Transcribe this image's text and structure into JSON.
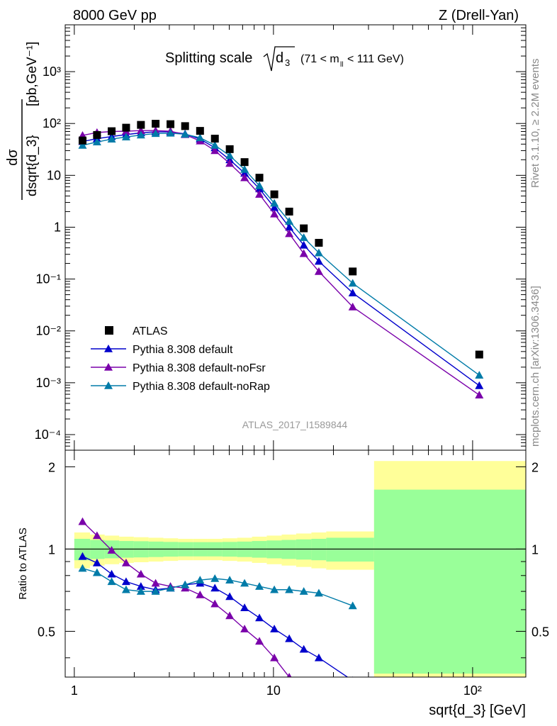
{
  "header": {
    "left": "8000 GeV pp",
    "right": "Z (Drell-Yan)"
  },
  "side": {
    "rivet": "Rivet 3.1.10, ≥ 2.2M events",
    "mcplots": "mcplots.cern.ch [arXiv:1306.3436]"
  },
  "chart_data": [
    {
      "type": "scatter",
      "title": "Splitting scale √d₃ (71 < mₗₗ < 111 GeV)",
      "title_main": "Splitting scale",
      "title_sym": "d",
      "title_sub": "3",
      "title_range_pre": "(71 < m",
      "title_range_sub": "ll",
      "title_range_post": " < 111 GeV)",
      "analysis_label": "ATLAS_2017_I1589844",
      "xlabel": "sqrt{d_3} [GeV]",
      "ylabel_num": "dσ",
      "ylabel_den": "dsqrt{d_3}",
      "ylabel_units": "[pb,GeV⁻¹]",
      "xscale": "log",
      "yscale": "log",
      "xlim": [
        0.9,
        185
      ],
      "ylim": [
        5e-05,
        8000
      ],
      "x_ticks": [
        "1",
        "10",
        "10²"
      ],
      "y_ticks": [
        "10⁻⁴",
        "10⁻³",
        "10⁻²",
        "10⁻¹",
        "1",
        "10",
        "10²",
        "10³"
      ],
      "legend_position": "bottom-left",
      "series": [
        {
          "name": "ATLAS",
          "color": "#000000",
          "marker": "square",
          "x": [
            1.1,
            1.3,
            1.54,
            1.82,
            2.16,
            2.56,
            3.04,
            3.6,
            4.28,
            5.08,
            6.03,
            7.16,
            8.5,
            10.1,
            12.0,
            14.2,
            16.9,
            25.0,
            108.0
          ],
          "y": [
            47,
            60,
            71,
            83,
            94,
            99,
            97,
            89,
            72,
            51,
            32,
            18,
            9.0,
            4.3,
            2.0,
            0.95,
            0.5,
            0.14,
            0.0035
          ]
        },
        {
          "name": "Pythia 8.308 default",
          "color": "#0000cc",
          "marker": "triangle",
          "x": [
            1.1,
            1.3,
            1.54,
            1.82,
            2.16,
            2.56,
            3.04,
            3.6,
            4.28,
            5.08,
            6.03,
            7.16,
            8.5,
            10.1,
            12.0,
            14.2,
            16.9,
            25.0,
            108.0
          ],
          "y": [
            45,
            51,
            56,
            61,
            66,
            69,
            69,
            63,
            50,
            34,
            20,
            11,
            5.5,
            2.4,
            1.0,
            0.45,
            0.22,
            0.054,
            0.00088
          ]
        },
        {
          "name": "Pythia 8.308 default-noFsr",
          "color": "#7a00aa",
          "marker": "triangle",
          "x": [
            1.1,
            1.3,
            1.54,
            1.82,
            2.16,
            2.56,
            3.04,
            3.6,
            4.28,
            5.08,
            6.03,
            7.16,
            8.5,
            10.1,
            12.0,
            14.2,
            16.9,
            25.0,
            108.0
          ],
          "y": [
            59,
            67,
            70,
            71,
            73,
            73,
            71,
            61,
            46,
            30,
            17,
            9.0,
            4.3,
            1.8,
            0.75,
            0.31,
            0.14,
            0.029,
            0.00058
          ]
        },
        {
          "name": "Pythia 8.308 default-noRap",
          "color": "#007ba8",
          "marker": "triangle",
          "x": [
            1.1,
            1.3,
            1.54,
            1.82,
            2.16,
            2.56,
            3.04,
            3.6,
            4.28,
            5.08,
            6.03,
            7.16,
            8.5,
            10.1,
            12.0,
            14.2,
            16.9,
            25.0,
            108.0
          ],
          "y": [
            38,
            44,
            50,
            55,
            60,
            64,
            65,
            62,
            53,
            38,
            24,
            13,
            6.3,
            2.9,
            1.3,
            0.63,
            0.32,
            0.083,
            0.0014
          ]
        }
      ]
    },
    {
      "type": "line",
      "ylabel": "Ratio to ATLAS",
      "xscale": "log",
      "xlim": [
        0.9,
        185
      ],
      "ylim": [
        0.34,
        2.3
      ],
      "y_ticks": [
        "0.5",
        "1",
        "2"
      ],
      "bands": {
        "edges": [
          1.0,
          1.2,
          1.42,
          1.68,
          1.99,
          2.36,
          2.8,
          3.32,
          3.94,
          4.67,
          5.54,
          6.57,
          7.8,
          9.25,
          11.0,
          13.0,
          15.5,
          18.4,
          32.0,
          185.0
        ],
        "inner": [
          0.09,
          0.08,
          0.075,
          0.07,
          0.068,
          0.065,
          0.062,
          0.06,
          0.06,
          0.06,
          0.062,
          0.065,
          0.07,
          0.075,
          0.08,
          0.085,
          0.09,
          0.1,
          0.65
        ],
        "outer": [
          0.15,
          0.13,
          0.12,
          0.11,
          0.105,
          0.1,
          0.095,
          0.09,
          0.09,
          0.09,
          0.095,
          0.1,
          0.11,
          0.12,
          0.13,
          0.14,
          0.15,
          0.16,
          1.1
        ],
        "inner_color": "#99ff99",
        "outer_color": "#ffff99"
      },
      "series": [
        {
          "name": "Pythia 8.308 default",
          "color": "#0000cc",
          "x": [
            1.1,
            1.3,
            1.54,
            1.82,
            2.16,
            2.56,
            3.04,
            3.6,
            4.28,
            5.08,
            6.03,
            7.16,
            8.5,
            10.1,
            12.0,
            14.2,
            16.9,
            25.0
          ],
          "y": [
            0.94,
            0.89,
            0.81,
            0.76,
            0.73,
            0.71,
            0.72,
            0.74,
            0.75,
            0.72,
            0.67,
            0.61,
            0.56,
            0.51,
            0.47,
            0.43,
            0.4,
            0.33
          ]
        },
        {
          "name": "Pythia 8.308 default-noFsr",
          "color": "#7a00aa",
          "x": [
            1.1,
            1.3,
            1.54,
            1.82,
            2.16,
            2.56,
            3.04,
            3.6,
            4.28,
            5.08,
            6.03,
            7.16,
            8.5,
            10.1,
            12.0
          ],
          "y": [
            1.26,
            1.12,
            0.99,
            0.89,
            0.81,
            0.75,
            0.73,
            0.72,
            0.68,
            0.63,
            0.57,
            0.51,
            0.46,
            0.4,
            0.34
          ]
        },
        {
          "name": "Pythia 8.308 default-noRap",
          "color": "#007ba8",
          "x": [
            1.1,
            1.3,
            1.54,
            1.82,
            2.16,
            2.56,
            3.04,
            3.6,
            4.28,
            5.08,
            6.03,
            7.16,
            8.5,
            10.1,
            12.0,
            14.2,
            16.9,
            25.0
          ],
          "y": [
            0.85,
            0.82,
            0.76,
            0.71,
            0.7,
            0.7,
            0.72,
            0.74,
            0.77,
            0.78,
            0.77,
            0.75,
            0.73,
            0.71,
            0.71,
            0.7,
            0.69,
            0.62
          ]
        }
      ]
    }
  ]
}
